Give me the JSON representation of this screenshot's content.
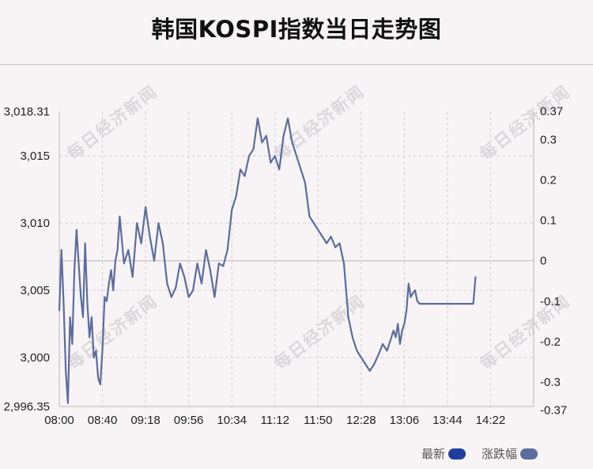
{
  "title": "韩国KOSPI指数当日走势图",
  "watermark": "每日经济新闻",
  "legend": [
    {
      "label": "最新",
      "color": "#1f3e9e"
    },
    {
      "label": "涨跌幅",
      "color": "#5b6d9e"
    }
  ],
  "chart_data": {
    "type": "line",
    "x_ticks": [
      "08:00",
      "08:40",
      "09:18",
      "09:56",
      "10:34",
      "11:12",
      "11:50",
      "12:28",
      "13:06",
      "13:44",
      "14:22"
    ],
    "y_left_ticks": [
      "3,018.31",
      "3,015",
      "3,010",
      "3,005",
      "3,000",
      "2,996.35"
    ],
    "y_right_ticks": [
      "0.37",
      "0.3",
      "0.2",
      "0.1",
      "0",
      "-0.1",
      "-0.2",
      "-0.3",
      "-0.37"
    ],
    "ylim": [
      2996.35,
      3018.31
    ],
    "baseline": 3007.2,
    "series": [
      {
        "color": "#5b6d9e",
        "x": [
          "08:00",
          "08:02",
          "08:04",
          "08:06",
          "08:08",
          "08:10",
          "08:12",
          "08:14",
          "08:16",
          "08:18",
          "08:20",
          "08:22",
          "08:24",
          "08:26",
          "08:28",
          "08:30",
          "08:32",
          "08:34",
          "08:36",
          "08:38",
          "08:40",
          "08:42",
          "08:44",
          "08:46",
          "08:48",
          "08:50",
          "08:52",
          "08:54",
          "08:56",
          "09:00",
          "09:04",
          "09:08",
          "09:12",
          "09:16",
          "09:20",
          "09:24",
          "09:28",
          "09:32",
          "09:36",
          "09:40",
          "09:44",
          "09:48",
          "09:52",
          "09:56",
          "10:00",
          "10:04",
          "10:08",
          "10:12",
          "10:16",
          "10:20",
          "10:24",
          "10:28",
          "10:32",
          "10:36",
          "10:40",
          "10:44",
          "10:48",
          "10:52",
          "10:56",
          "11:00",
          "11:04",
          "11:08",
          "11:12",
          "11:16",
          "11:20",
          "11:24",
          "11:28",
          "11:32",
          "11:36",
          "11:40",
          "11:44",
          "11:48",
          "11:52",
          "11:56",
          "12:00",
          "12:04",
          "12:08",
          "12:12",
          "12:16",
          "12:20",
          "12:24",
          "12:28",
          "12:32",
          "12:36",
          "12:40",
          "12:44",
          "12:48",
          "12:52",
          "12:56",
          "13:00",
          "13:04",
          "13:08",
          "13:10",
          "13:12",
          "13:14",
          "13:16",
          "13:18",
          "13:20",
          "13:22",
          "13:24",
          "13:26",
          "13:28",
          "13:30",
          "13:32",
          "13:34",
          "13:36",
          "13:40",
          "13:44",
          "13:48",
          "13:52",
          "13:56",
          "14:00",
          "14:04",
          "14:08",
          "14:12",
          "14:16",
          "14:20",
          "14:24",
          "14:26"
        ],
        "values": [
          3003.5,
          3008.0,
          3004.0,
          2999.0,
          2996.6,
          3003.0,
          3001.0,
          3006.5,
          3009.5,
          3007.0,
          3004.5,
          3003.0,
          3008.5,
          3004.0,
          3001.5,
          3003.0,
          3000.0,
          3000.5,
          2998.5,
          2998.0,
          3000.5,
          3004.5,
          3004.2,
          3005.5,
          3006.5,
          3005.0,
          3007.2,
          3008.0,
          3010.5,
          3007.0,
          3008.0,
          3006.0,
          3010.0,
          3008.5,
          3011.2,
          3009.0,
          3007.2,
          3010.0,
          3008.5,
          3005.5,
          3004.5,
          3005.2,
          3007.0,
          3006.0,
          3004.5,
          3005.0,
          3007.0,
          3005.5,
          3008.0,
          3006.5,
          3004.5,
          3007.0,
          3006.8,
          3008.0,
          3011.0,
          3012.0,
          3014.0,
          3013.5,
          3015.0,
          3015.5,
          3017.8,
          3016.0,
          3016.5,
          3014.5,
          3015.0,
          3014.0,
          3016.5,
          3017.8,
          3016.0,
          3015.0,
          3014.0,
          3013.0,
          3010.5,
          3010.0,
          3009.5,
          3009.0,
          3008.5,
          3009.0,
          3008.2,
          3008.5,
          3007.0,
          3003.0,
          3001.5,
          3000.5,
          3000.0,
          2999.5,
          2999.0,
          2999.5,
          3000.2,
          3001.0,
          3000.5,
          3001.5,
          3002.0,
          3001.5,
          3002.5,
          3001.0,
          3002.0,
          3002.5,
          3003.5,
          3005.5,
          3004.5,
          3004.8,
          3005.0,
          3004.2,
          3004.0,
          3004.0,
          3004.0,
          3004.0,
          3004.0,
          3004.0,
          3004.0,
          3004.0,
          3004.0,
          3004.0,
          3004.0,
          3004.0,
          3004.0,
          3004.0,
          3006.0
        ]
      }
    ]
  }
}
